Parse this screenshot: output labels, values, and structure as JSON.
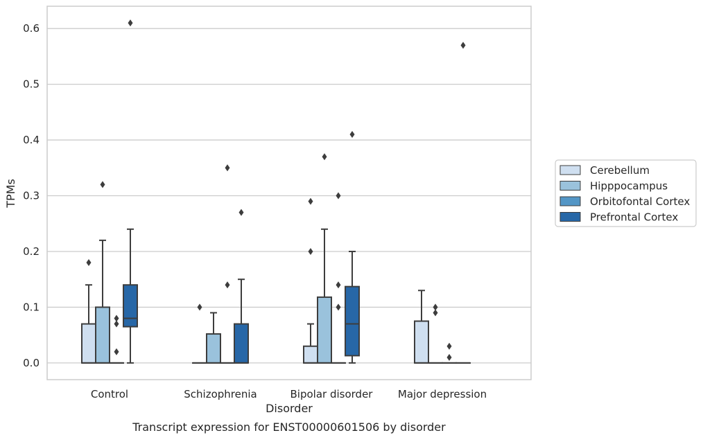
{
  "chart_data": {
    "type": "box",
    "title": "",
    "caption": "Transcript expression for ENST00000601506 by disorder",
    "xlabel": "Disorder",
    "ylabel": "TPMs",
    "ylim": [
      -0.03,
      0.64
    ],
    "yticks": [
      "0.0",
      "0.1",
      "0.2",
      "0.3",
      "0.4",
      "0.5",
      "0.6"
    ],
    "yticks_values": [
      0.0,
      0.1,
      0.2,
      0.3,
      0.4,
      0.5,
      0.6
    ],
    "grid": "horizontal",
    "legend_position": "center-right outside",
    "categories": [
      "Control",
      "Schizophrenia",
      "Bipolar disorder",
      "Major depression"
    ],
    "series": [
      {
        "name": "Cerebellum",
        "color": "#cfdff0",
        "boxes": [
          {
            "q1": 0.0,
            "median": 0.0,
            "q3": 0.07,
            "whisker_low": 0.0,
            "whisker_high": 0.14,
            "outliers": [
              0.18
            ]
          },
          {
            "q1": 0.0,
            "median": 0.0,
            "q3": 0.0,
            "whisker_low": 0.0,
            "whisker_high": 0.0,
            "outliers": [
              0.1
            ]
          },
          {
            "q1": 0.0,
            "median": 0.0,
            "q3": 0.03,
            "whisker_low": 0.0,
            "whisker_high": 0.07,
            "outliers": [
              0.2,
              0.29
            ]
          },
          {
            "q1": 0.0,
            "median": 0.0,
            "q3": 0.075,
            "whisker_low": 0.0,
            "whisker_high": 0.13,
            "outliers": []
          }
        ]
      },
      {
        "name": "Hipppocampus",
        "color": "#9ac2dc",
        "boxes": [
          {
            "q1": 0.0,
            "median": 0.0,
            "q3": 0.1,
            "whisker_low": 0.0,
            "whisker_high": 0.22,
            "outliers": [
              0.32
            ]
          },
          {
            "q1": 0.0,
            "median": 0.0,
            "q3": 0.052,
            "whisker_low": 0.0,
            "whisker_high": 0.09,
            "outliers": []
          },
          {
            "q1": 0.0,
            "median": 0.0,
            "q3": 0.118,
            "whisker_low": 0.0,
            "whisker_high": 0.24,
            "outliers": [
              0.37
            ]
          },
          {
            "q1": 0.0,
            "median": 0.0,
            "q3": 0.0,
            "whisker_low": 0.0,
            "whisker_high": 0.0,
            "outliers": [
              0.1,
              0.09
            ]
          }
        ]
      },
      {
        "name": "Orbitofontal Cortex",
        "color": "#5396c6",
        "boxes": [
          {
            "q1": 0.0,
            "median": 0.0,
            "q3": 0.0,
            "whisker_low": 0.0,
            "whisker_high": 0.0,
            "outliers": [
              0.08,
              0.07,
              0.02
            ]
          },
          {
            "q1": 0.0,
            "median": 0.0,
            "q3": 0.0,
            "whisker_low": 0.0,
            "whisker_high": 0.0,
            "outliers": [
              0.14,
              0.35
            ]
          },
          {
            "q1": 0.0,
            "median": 0.0,
            "q3": 0.0,
            "whisker_low": 0.0,
            "whisker_high": 0.0,
            "outliers": [
              0.1,
              0.14,
              0.3
            ]
          },
          {
            "q1": 0.0,
            "median": 0.0,
            "q3": 0.0,
            "whisker_low": 0.0,
            "whisker_high": 0.0,
            "outliers": [
              0.03,
              0.01
            ]
          }
        ]
      },
      {
        "name": "Prefrontal Cortex",
        "color": "#2767a7",
        "boxes": [
          {
            "q1": 0.065,
            "median": 0.08,
            "q3": 0.14,
            "whisker_low": 0.0,
            "whisker_high": 0.24,
            "outliers": [
              0.61
            ]
          },
          {
            "q1": 0.0,
            "median": 0.0,
            "q3": 0.07,
            "whisker_low": 0.0,
            "whisker_high": 0.15,
            "outliers": [
              0.27
            ]
          },
          {
            "q1": 0.013,
            "median": 0.07,
            "q3": 0.137,
            "whisker_low": 0.0,
            "whisker_high": 0.2,
            "outliers": [
              0.41
            ]
          },
          {
            "q1": 0.0,
            "median": 0.0,
            "q3": 0.0,
            "whisker_low": 0.0,
            "whisker_high": 0.0,
            "outliers": [
              0.57
            ]
          }
        ]
      }
    ]
  }
}
